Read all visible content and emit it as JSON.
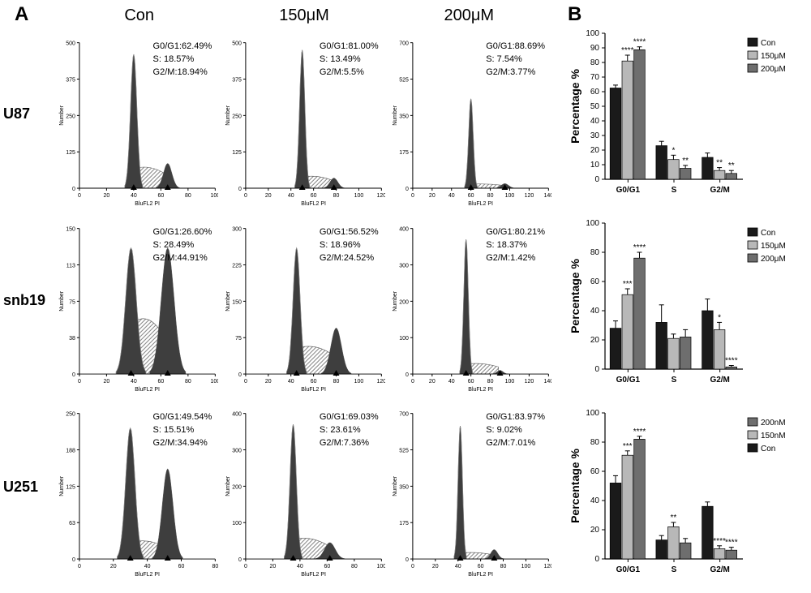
{
  "panelA_label": "A",
  "panelB_label": "B",
  "col_headers": [
    "Con",
    "150μM",
    "200μM"
  ],
  "row_labels": [
    "U87",
    "snb19",
    "U251"
  ],
  "histo": {
    "xlabel": "BluFL2 PI",
    "ylabel": "Number",
    "axis_color": "#000000",
    "fill_color": "#3e3e3e",
    "hatch_color": "#6a6a6a",
    "outline_color": "#555555",
    "cells": [
      {
        "row": "U87",
        "col": "Con",
        "ymax": 500,
        "xmax": 100,
        "g01_x": 40,
        "g01_h": 460,
        "g01_w": 6,
        "s_h": 70,
        "g2_x": 65,
        "g2_h": 85,
        "g2_w": 8,
        "g01": "62.49%",
        "s": "18.57%",
        "g2": "18.94%"
      },
      {
        "row": "U87",
        "col": "150μM",
        "ymax": 500,
        "xmax": 120,
        "g01_x": 50,
        "g01_h": 475,
        "g01_w": 6,
        "s_h": 40,
        "g2_x": 78,
        "g2_h": 35,
        "g2_w": 9,
        "g01": "81.00%",
        "s": "13.49%",
        "g2": "5.5%"
      },
      {
        "row": "U87",
        "col": "200μM",
        "ymax": 700,
        "xmax": 140,
        "g01_x": 60,
        "g01_h": 430,
        "g01_w": 6,
        "s_h": 20,
        "g2_x": 95,
        "g2_h": 22,
        "g2_w": 10,
        "g01": "88.69%",
        "s": "7.54%",
        "g2": "3.77%"
      },
      {
        "row": "snb19",
        "col": "Con",
        "ymax": 150,
        "xmax": 100,
        "g01_x": 38,
        "g01_h": 130,
        "g01_w": 10,
        "s_h": 55,
        "g2_x": 65,
        "g2_h": 130,
        "g2_w": 12,
        "g01": "26.60%",
        "s": "28.49%",
        "g2": "44.91%"
      },
      {
        "row": "snb19",
        "col": "150μM",
        "ymax": 300,
        "xmax": 120,
        "g01_x": 45,
        "g01_h": 260,
        "g01_w": 8,
        "s_h": 55,
        "g2_x": 80,
        "g2_h": 95,
        "g2_w": 12,
        "g01": "56.52%",
        "s": "18.96%",
        "g2": "24.52%"
      },
      {
        "row": "snb19",
        "col": "200μM",
        "ymax": 400,
        "xmax": 140,
        "g01_x": 55,
        "g01_h": 370,
        "g01_w": 6,
        "s_h": 28,
        "g2_x": 90,
        "g2_h": 10,
        "g2_w": 8,
        "g01": "80.21%",
        "s": "18.37%",
        "g2": "1.42%"
      },
      {
        "row": "U251",
        "col": "Con",
        "ymax": 250,
        "xmax": 80,
        "g01_x": 30,
        "g01_h": 225,
        "g01_w": 7,
        "s_h": 30,
        "g2_x": 52,
        "g2_h": 155,
        "g2_w": 8,
        "g01": "49.54%",
        "s": "15.51%",
        "g2": "34.94%"
      },
      {
        "row": "U251",
        "col": "150μM",
        "ymax": 400,
        "xmax": 100,
        "g01_x": 35,
        "g01_h": 370,
        "g01_w": 6,
        "s_h": 55,
        "g2_x": 62,
        "g2_h": 45,
        "g2_w": 10,
        "g01": "69.03%",
        "s": "23.61%",
        "g2": "7.36%"
      },
      {
        "row": "U251",
        "col": "200μM",
        "ymax": 700,
        "xmax": 120,
        "g01_x": 42,
        "g01_h": 640,
        "g01_w": 5,
        "s_h": 30,
        "g2_x": 72,
        "g2_h": 45,
        "g2_w": 8,
        "g01": "83.97%",
        "s": "9.02%",
        "g2": "7.01%"
      }
    ]
  },
  "bars": {
    "ylabel": "Percentage %",
    "categories": [
      "G0/G1",
      "S",
      "G2/M"
    ],
    "series": [
      {
        "label": "Con",
        "color": "#1a1a1a"
      },
      {
        "label": "150μM",
        "color": "#b8b8b8"
      },
      {
        "label": "200μM",
        "color": "#6e6e6e"
      }
    ],
    "axis_color": "#000000",
    "bar_width": 0.8,
    "gap": 0.25,
    "charts": [
      {
        "cell": "U87",
        "ymax": 100,
        "ystep": 10,
        "break": false,
        "legend_order": [
          "Con",
          "150μM",
          "200μM"
        ],
        "groups": [
          {
            "vals": [
              62.5,
              81.0,
              88.7
            ],
            "err": [
              2,
              4,
              2
            ],
            "sig": [
              "",
              "****",
              "****"
            ]
          },
          {
            "vals": [
              23,
              13.5,
              7.5
            ],
            "err": [
              3,
              3,
              2
            ],
            "sig": [
              "",
              "*",
              "**"
            ]
          },
          {
            "vals": [
              15,
              6,
              4
            ],
            "err": [
              3,
              2,
              2
            ],
            "sig": [
              "",
              "**",
              "**"
            ]
          }
        ]
      },
      {
        "cell": "snb19",
        "ymax": 100,
        "ystep": 20,
        "break": false,
        "legend_order": [
          "Con",
          "150μM",
          "200μM"
        ],
        "groups": [
          {
            "vals": [
              28,
              51,
              76
            ],
            "err": [
              5,
              4,
              4
            ],
            "sig": [
              "",
              "***",
              "****"
            ]
          },
          {
            "vals": [
              32,
              21,
              22
            ],
            "err": [
              12,
              3,
              5
            ],
            "sig": [
              "",
              "",
              ""
            ]
          },
          {
            "vals": [
              40,
              27,
              1.5
            ],
            "err": [
              8,
              5,
              1
            ],
            "sig": [
              "",
              "*",
              "****"
            ]
          }
        ]
      },
      {
        "cell": "U251",
        "ymax": 100,
        "ystep": 20,
        "break": false,
        "legend_order": [
          "200nM",
          "150nM",
          "Con"
        ],
        "legend_colors": {
          "200nM": "#6e6e6e",
          "150nM": "#b8b8b8",
          "Con": "#1a1a1a"
        },
        "groups": [
          {
            "vals": [
              52,
              71,
              82
            ],
            "err": [
              5,
              3,
              2
            ],
            "sig": [
              "",
              "***",
              "****"
            ]
          },
          {
            "vals": [
              13,
              22,
              11
            ],
            "err": [
              3,
              3,
              3
            ],
            "sig": [
              "",
              "**",
              ""
            ]
          },
          {
            "vals": [
              36,
              7,
              6
            ],
            "err": [
              3,
              2,
              2
            ],
            "sig": [
              "",
              "****",
              "****"
            ]
          }
        ]
      }
    ]
  }
}
